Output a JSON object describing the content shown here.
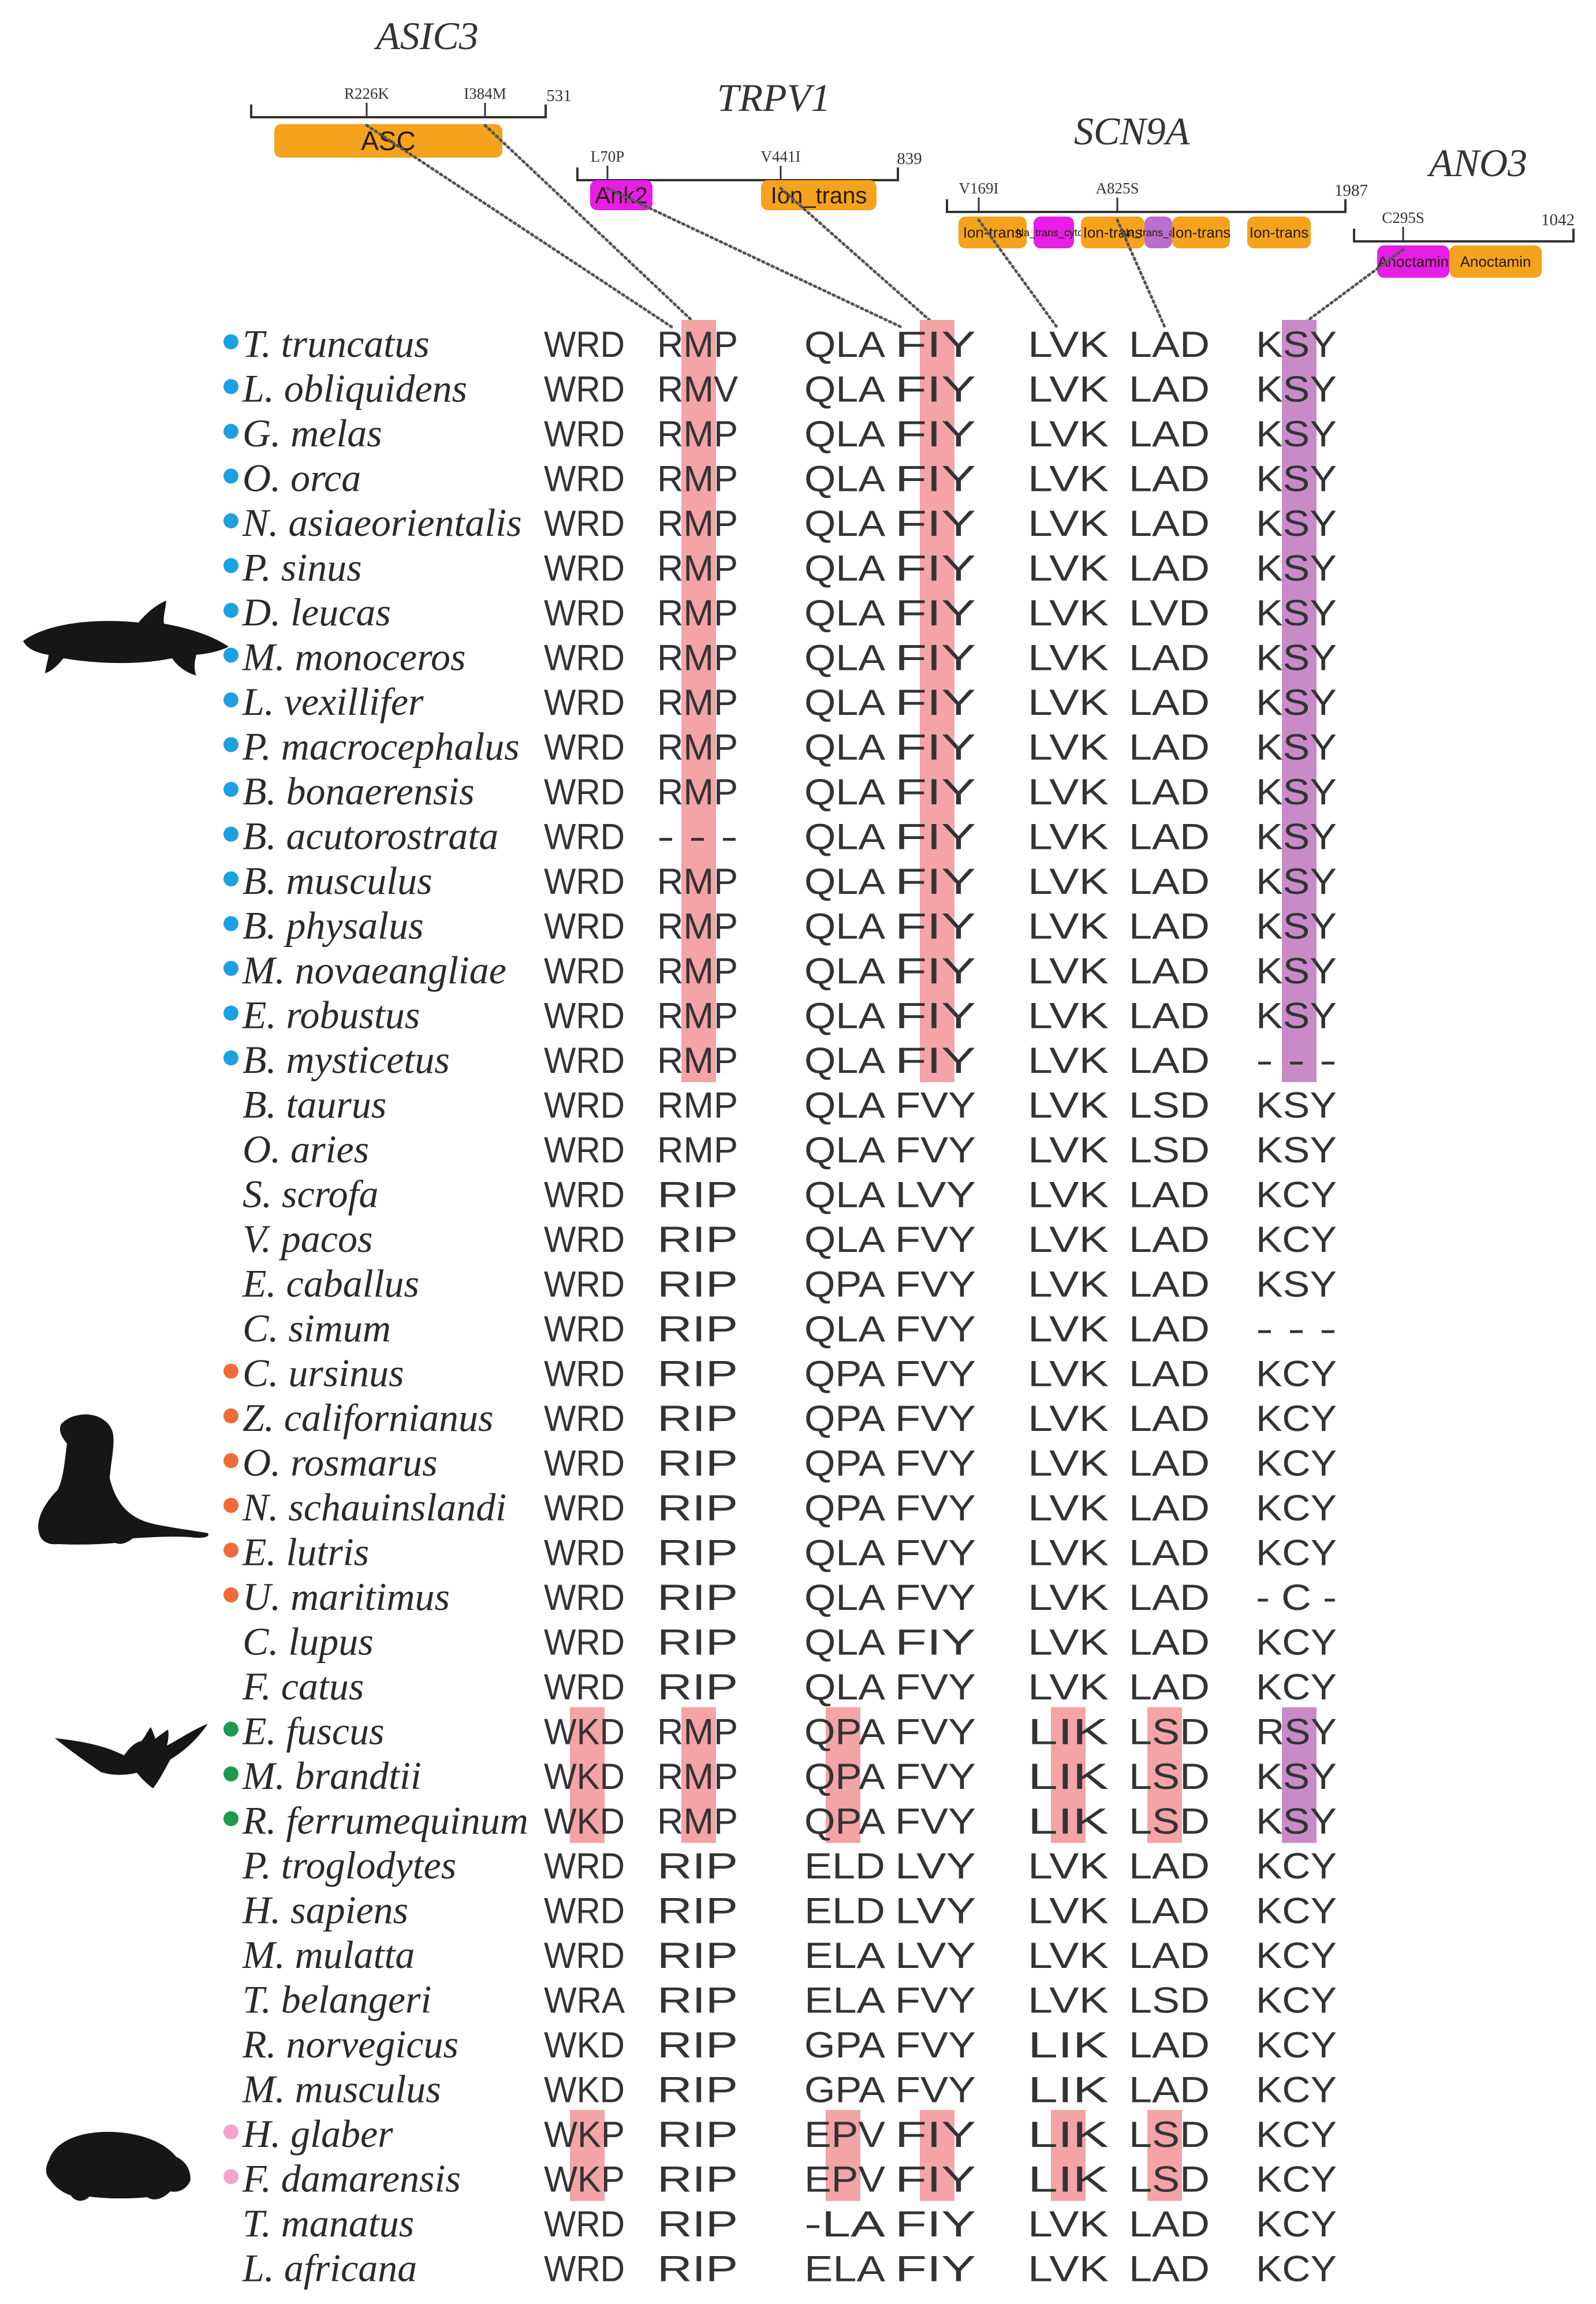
{
  "colors": {
    "domain_orange": "#F5A21C",
    "domain_magenta": "#E61EE6",
    "domain_purple": "#B96ED0",
    "hl_red": "#F4A3A6",
    "hl_purple": "#C98BC8",
    "cetacean_dot": "#1BA1E2",
    "pinniped_dot": "#F06B3A",
    "bat_dot": "#1E9A4F",
    "molerat_dot": "#F2A5C8"
  },
  "genes": [
    {
      "name": "ASIC3",
      "length": "531",
      "sites": [
        "R226K",
        "I384M"
      ],
      "domains": [
        {
          "label": "ASC",
          "color": "orange"
        }
      ]
    },
    {
      "name": "TRPV1",
      "length": "839",
      "sites": [
        "L70P",
        "V441I"
      ],
      "domains": [
        {
          "label": "Ank2",
          "color": "magenta"
        },
        {
          "label": "Ion_trans",
          "color": "orange"
        }
      ]
    },
    {
      "name": "SCN9A",
      "length": "1987",
      "sites": [
        "V169I",
        "A825S"
      ],
      "domains": [
        {
          "label": "Ion-trans",
          "color": "orange"
        },
        {
          "label": "Na_trans_cytopl",
          "color": "magenta"
        },
        {
          "label": "Ion-trans",
          "color": "orange"
        },
        {
          "label": "Na_trans_assoc",
          "color": "purple"
        },
        {
          "label": "Ion-trans",
          "color": "orange"
        },
        {
          "label": "Ion-trans",
          "color": "orange"
        }
      ]
    },
    {
      "name": "ANO3",
      "length": "1042",
      "sites": [
        "C295S"
      ],
      "domains": [
        {
          "label": "Anoctamin",
          "color": "magenta"
        },
        {
          "label": "Anoctamin",
          "color": "orange"
        }
      ]
    }
  ],
  "columns": [
    "ASIC3 R226K",
    "ASIC3 I384M",
    "TRPV1 L70P",
    "TRPV1 V441I",
    "SCN9A V169I",
    "SCN9A A825S",
    "ANO3 C295S"
  ],
  "rows": [
    {
      "species": "T. truncatus",
      "group": "cetacean",
      "cols": [
        "WRD",
        "RMP",
        "QLA",
        "FIY",
        "LVK",
        "LAD",
        "KSY"
      ]
    },
    {
      "species": "L. obliquidens",
      "group": "cetacean",
      "cols": [
        "WRD",
        "RMV",
        "QLA",
        "FIY",
        "LVK",
        "LAD",
        "KSY"
      ]
    },
    {
      "species": "G. melas",
      "group": "cetacean",
      "cols": [
        "WRD",
        "RMP",
        "QLA",
        "FIY",
        "LVK",
        "LAD",
        "KSY"
      ]
    },
    {
      "species": "O. orca",
      "group": "cetacean",
      "cols": [
        "WRD",
        "RMP",
        "QLA",
        "FIY",
        "LVK",
        "LAD",
        "KSY"
      ]
    },
    {
      "species": "N. asiaeorientalis",
      "group": "cetacean",
      "cols": [
        "WRD",
        "RMP",
        "QLA",
        "FIY",
        "LVK",
        "LAD",
        "KSY"
      ]
    },
    {
      "species": "P. sinus",
      "group": "cetacean",
      "cols": [
        "WRD",
        "RMP",
        "QLA",
        "FIY",
        "LVK",
        "LAD",
        "KSY"
      ]
    },
    {
      "species": "D. leucas",
      "group": "cetacean",
      "cols": [
        "WRD",
        "RMP",
        "QLA",
        "FIY",
        "LVK",
        "LVD",
        "KSY"
      ]
    },
    {
      "species": "M. monoceros",
      "group": "cetacean",
      "cols": [
        "WRD",
        "RMP",
        "QLA",
        "FIY",
        "LVK",
        "LAD",
        "KSY"
      ]
    },
    {
      "species": "L. vexillifer",
      "group": "cetacean",
      "cols": [
        "WRD",
        "RMP",
        "QLA",
        "FIY",
        "LVK",
        "LAD",
        "KSY"
      ]
    },
    {
      "species": "P. macrocephalus",
      "group": "cetacean",
      "cols": [
        "WRD",
        "RMP",
        "QLA",
        "FIY",
        "LVK",
        "LAD",
        "KSY"
      ]
    },
    {
      "species": "B. bonaerensis",
      "group": "cetacean",
      "cols": [
        "WRD",
        "RMP",
        "QLA",
        "FIY",
        "LVK",
        "LAD",
        "KSY"
      ]
    },
    {
      "species": "B. acutorostrata",
      "group": "cetacean",
      "cols": [
        "WRD",
        "- - -",
        "QLA",
        "FIY",
        "LVK",
        "LAD",
        "KSY"
      ]
    },
    {
      "species": "B. musculus",
      "group": "cetacean",
      "cols": [
        "WRD",
        "RMP",
        "QLA",
        "FIY",
        "LVK",
        "LAD",
        "KSY"
      ]
    },
    {
      "species": "B. physalus",
      "group": "cetacean",
      "cols": [
        "WRD",
        "RMP",
        "QLA",
        "FIY",
        "LVK",
        "LAD",
        "KSY"
      ]
    },
    {
      "species": "M. novaeangliae",
      "group": "cetacean",
      "cols": [
        "WRD",
        "RMP",
        "QLA",
        "FIY",
        "LVK",
        "LAD",
        "KSY"
      ]
    },
    {
      "species": "E. robustus",
      "group": "cetacean",
      "cols": [
        "WRD",
        "RMP",
        "QLA",
        "FIY",
        "LVK",
        "LAD",
        "KSY"
      ]
    },
    {
      "species": "B. mysticetus",
      "group": "cetacean",
      "cols": [
        "WRD",
        "RMP",
        "QLA",
        "FIY",
        "LVK",
        "LAD",
        "- - -"
      ]
    },
    {
      "species": "B. taurus",
      "group": "none",
      "cols": [
        "WRD",
        "RMP",
        "QLA",
        "FVY",
        "LVK",
        "LSD",
        "KSY"
      ]
    },
    {
      "species": "O. aries",
      "group": "none",
      "cols": [
        "WRD",
        "RMP",
        "QLA",
        "FVY",
        "LVK",
        "LSD",
        "KSY"
      ]
    },
    {
      "species": "S. scrofa",
      "group": "none",
      "cols": [
        "WRD",
        "RIP",
        "QLA",
        "LVY",
        "LVK",
        "LAD",
        "KCY"
      ]
    },
    {
      "species": "V. pacos",
      "group": "none",
      "cols": [
        "WRD",
        "RIP",
        "QLA",
        "FVY",
        "LVK",
        "LAD",
        "KCY"
      ]
    },
    {
      "species": "E. caballus",
      "group": "none",
      "cols": [
        "WRD",
        "RIP",
        "QPA",
        "FVY",
        "LVK",
        "LAD",
        "KSY"
      ]
    },
    {
      "species": "C. simum",
      "group": "none",
      "cols": [
        "WRD",
        "RIP",
        "QLA",
        "FVY",
        "LVK",
        "LAD",
        "- - -"
      ]
    },
    {
      "species": "C. ursinus",
      "group": "pinniped",
      "cols": [
        "WRD",
        "RIP",
        "QPA",
        "FVY",
        "LVK",
        "LAD",
        "KCY"
      ]
    },
    {
      "species": "Z. californianus",
      "group": "pinniped",
      "cols": [
        "WRD",
        "RIP",
        "QPA",
        "FVY",
        "LVK",
        "LAD",
        "KCY"
      ]
    },
    {
      "species": "O. rosmarus",
      "group": "pinniped",
      "cols": [
        "WRD",
        "RIP",
        "QPA",
        "FVY",
        "LVK",
        "LAD",
        "KCY"
      ]
    },
    {
      "species": "N. schauinslandi",
      "group": "pinniped",
      "cols": [
        "WRD",
        "RIP",
        "QPA",
        "FVY",
        "LVK",
        "LAD",
        "KCY"
      ]
    },
    {
      "species": "E. lutris",
      "group": "pinniped",
      "cols": [
        "WRD",
        "RIP",
        "QLA",
        "FVY",
        "LVK",
        "LAD",
        "KCY"
      ]
    },
    {
      "species": "U. maritimus",
      "group": "pinniped",
      "cols": [
        "WRD",
        "RIP",
        "QLA",
        "FVY",
        "LVK",
        "LAD",
        "- C -"
      ]
    },
    {
      "species": "C. lupus",
      "group": "none",
      "cols": [
        "WRD",
        "RIP",
        "QLA",
        "FIY",
        "LVK",
        "LAD",
        "KCY"
      ]
    },
    {
      "species": "F. catus",
      "group": "none",
      "cols": [
        "WRD",
        "RIP",
        "QLA",
        "FVY",
        "LVK",
        "LAD",
        "KCY"
      ]
    },
    {
      "species": "E. fuscus",
      "group": "bat",
      "cols": [
        "WKD",
        "RMP",
        "QPA",
        "FVY",
        "LIK",
        "LSD",
        "RSY"
      ]
    },
    {
      "species": "M. brandtii",
      "group": "bat",
      "cols": [
        "WKD",
        "RMP",
        "QPA",
        "FVY",
        "LIK",
        "LSD",
        "KSY"
      ]
    },
    {
      "species": "R. ferrumequinum",
      "group": "bat",
      "cols": [
        "WKD",
        "RMP",
        "QPA",
        "FVY",
        "LIK",
        "LSD",
        "KSY"
      ]
    },
    {
      "species": "P. troglodytes",
      "group": "none",
      "cols": [
        "WRD",
        "RIP",
        "ELD",
        "LVY",
        "LVK",
        "LAD",
        "KCY"
      ]
    },
    {
      "species": "H. sapiens",
      "group": "none",
      "cols": [
        "WRD",
        "RIP",
        "ELD",
        "LVY",
        "LVK",
        "LAD",
        "KCY"
      ]
    },
    {
      "species": "M. mulatta",
      "group": "none",
      "cols": [
        "WRD",
        "RIP",
        "ELA",
        "LVY",
        "LVK",
        "LAD",
        "KCY"
      ]
    },
    {
      "species": "T. belangeri",
      "group": "none",
      "cols": [
        "WRA",
        "RIP",
        "ELA",
        "FVY",
        "LVK",
        "LSD",
        "KCY"
      ]
    },
    {
      "species": "R. norvegicus",
      "group": "none",
      "cols": [
        "WKD",
        "RIP",
        "GPA",
        "FVY",
        "LIK",
        "LAD",
        "KCY"
      ]
    },
    {
      "species": "M. musculus",
      "group": "none",
      "cols": [
        "WKD",
        "RIP",
        "GPA",
        "FVY",
        "LIK",
        "LAD",
        "KCY"
      ]
    },
    {
      "species": "H. glaber",
      "group": "molerat",
      "cols": [
        "WKP",
        "RIP",
        "EPV",
        "FIY",
        "LIK",
        "LSD",
        "KCY"
      ]
    },
    {
      "species": "F. damarensis",
      "group": "molerat",
      "cols": [
        "WKP",
        "RIP",
        "EPV",
        "FIY",
        "LIK",
        "LSD",
        "KCY"
      ]
    },
    {
      "species": "T. manatus",
      "group": "none",
      "cols": [
        "WRD",
        "RIP",
        "-LA",
        "FIY",
        "LVK",
        "LAD",
        "KCY"
      ]
    },
    {
      "species": "L. africana",
      "group": "none",
      "cols": [
        "WRD",
        "RIP",
        "ELA",
        "FIY",
        "LVK",
        "LAD",
        "KCY"
      ]
    }
  ],
  "highlights": [
    {
      "col": 1,
      "row_from": 0,
      "row_to": 16,
      "color": "red"
    },
    {
      "col": 3,
      "row_from": 0,
      "row_to": 16,
      "color": "red"
    },
    {
      "col": 6,
      "row_from": 0,
      "row_to": 16,
      "color": "purple"
    },
    {
      "col": 0,
      "row_from": 31,
      "row_to": 33,
      "color": "red"
    },
    {
      "col": 1,
      "row_from": 31,
      "row_to": 33,
      "color": "red"
    },
    {
      "col": 2,
      "row_from": 31,
      "row_to": 33,
      "color": "red"
    },
    {
      "col": 4,
      "row_from": 31,
      "row_to": 33,
      "color": "red"
    },
    {
      "col": 5,
      "row_from": 31,
      "row_to": 33,
      "color": "red"
    },
    {
      "col": 6,
      "row_from": 31,
      "row_to": 33,
      "color": "purple"
    },
    {
      "col": 0,
      "row_from": 40,
      "row_to": 41,
      "color": "red"
    },
    {
      "col": 2,
      "row_from": 40,
      "row_to": 41,
      "color": "red"
    },
    {
      "col": 3,
      "row_from": 40,
      "row_to": 41,
      "color": "red"
    },
    {
      "col": 4,
      "row_from": 40,
      "row_to": 41,
      "color": "red"
    },
    {
      "col": 5,
      "row_from": 40,
      "row_to": 41,
      "color": "red"
    }
  ],
  "silhouettes": [
    {
      "name": "dolphin"
    },
    {
      "name": "sea-lion"
    },
    {
      "name": "bat"
    },
    {
      "name": "mole-rat"
    }
  ]
}
